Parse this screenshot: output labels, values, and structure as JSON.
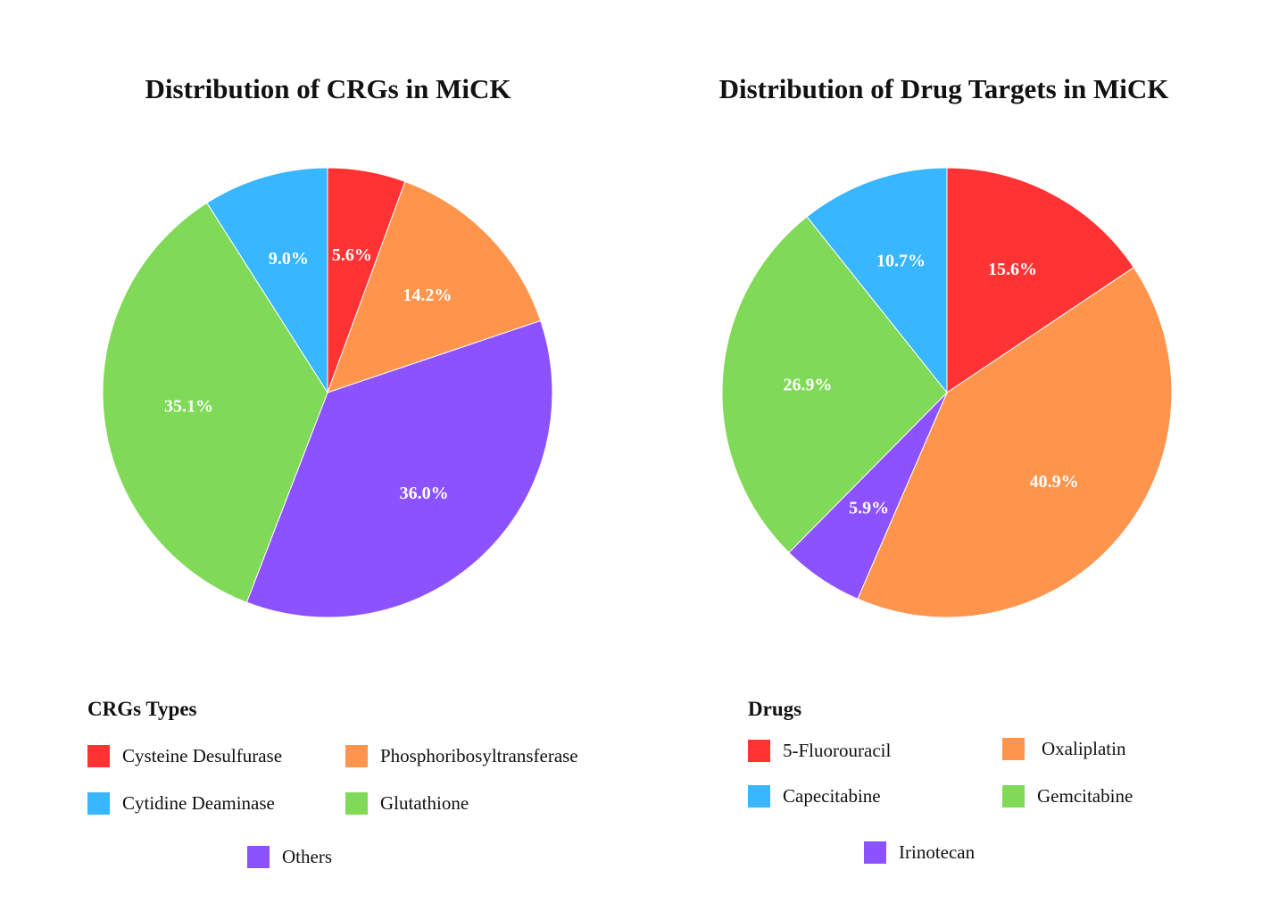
{
  "chart_data": [
    {
      "type": "pie",
      "title": "Distribution of CRGs in MiCK",
      "legend_title": "CRGs Types",
      "legend_position": "bottom",
      "categories": [
        "Cysteine Desulfurase",
        "Phosphoribosyltransferase",
        "Others",
        "Glutathione",
        "Cytidine Deaminase"
      ],
      "values": [
        5.6,
        14.2,
        36.0,
        35.1,
        9.0
      ],
      "labels": [
        "5.6%",
        "14.2%",
        "36.0%",
        "35.1%",
        "9.0%"
      ],
      "colors": [
        "#ff3333",
        "#ff944d",
        "#8c52ff",
        "#80d957",
        "#38b6ff"
      ]
    },
    {
      "type": "pie",
      "title": "Distribution of Drug Targets in MiCK",
      "legend_title": "Drugs",
      "legend_position": "bottom",
      "categories": [
        "5-Fluorouracil",
        "Oxaliplatin",
        "Irinotecan",
        "Gemcitabine",
        "Capecitabine"
      ],
      "values": [
        15.6,
        40.9,
        5.9,
        26.9,
        10.7
      ],
      "labels": [
        "15.6%",
        "40.9%",
        "5.9%",
        "26.9%",
        "10.7%"
      ],
      "colors": [
        "#ff3333",
        "#ff944d",
        "#8c52ff",
        "#80d957",
        "#38b6ff"
      ]
    }
  ]
}
